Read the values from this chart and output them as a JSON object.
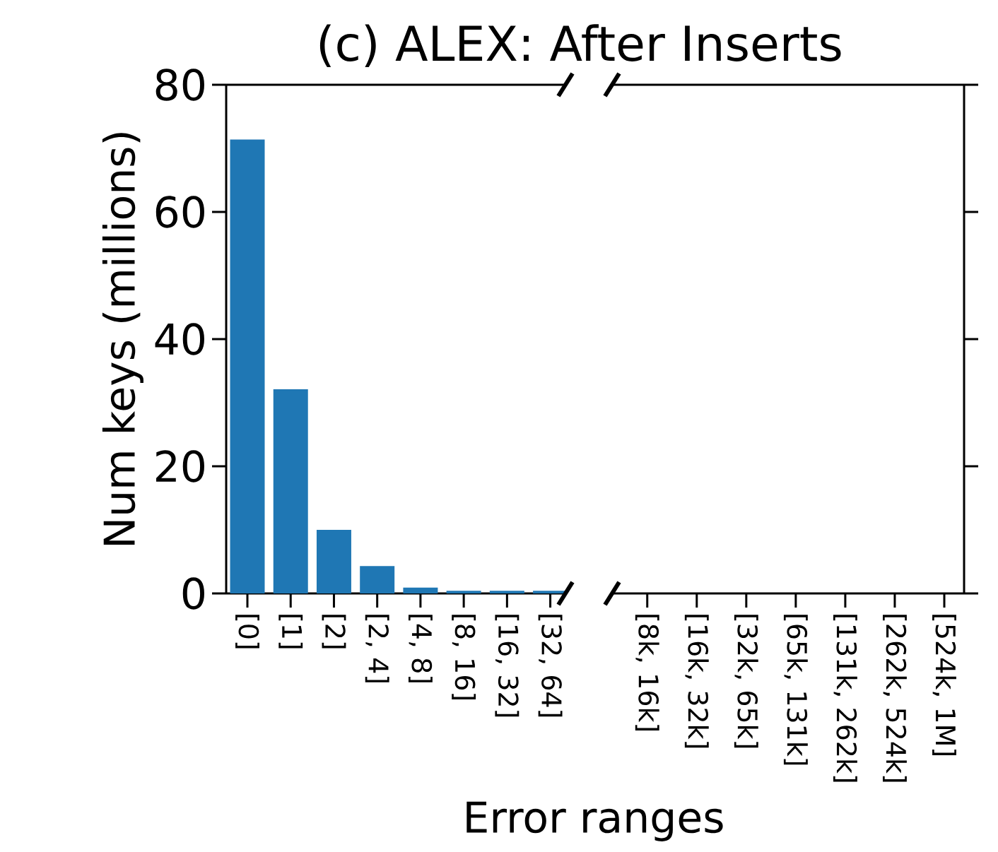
{
  "chart_data": [
    {
      "type": "bar",
      "title": "(c) ALEX: After Inserts",
      "ylabel": "Num keys (millions)",
      "categories": [
        "[0]",
        "[1]",
        "[2]",
        "[2, 4]",
        "[4, 8]",
        "[8, 16]",
        "[16, 32]",
        "[32, 64]"
      ],
      "values": [
        71.4,
        32.1,
        10.0,
        4.3,
        0.9,
        0.4,
        0.4,
        0.4
      ],
      "color": "#1f77b4",
      "ylim": [
        0,
        80
      ],
      "yticks": [
        0,
        20,
        40,
        60,
        80
      ]
    },
    {
      "type": "bar",
      "xlabel": "Error ranges",
      "categories": [
        "[8k, 16k]",
        "[16k, 32k]",
        "[32k, 65k]",
        "[65k, 131k]",
        "[131k, 262k]",
        "[262k, 524k]",
        "[524k, 1M]"
      ],
      "values": [
        0,
        0,
        0,
        0,
        0,
        0,
        0
      ],
      "color": "#1f77b4",
      "ylim": [
        0,
        80
      ],
      "yticks": [
        0,
        20,
        40,
        60,
        80
      ],
      "tick_labels": "x"
    }
  ]
}
